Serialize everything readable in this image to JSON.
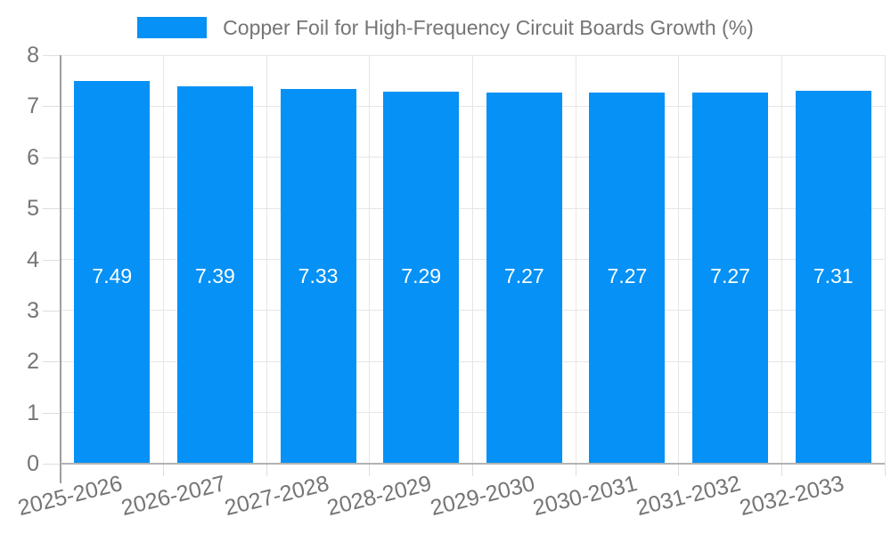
{
  "legend": {
    "label": "Copper Foil for High-Frequency Circuit Boards Growth (%)"
  },
  "chart_data": {
    "type": "bar",
    "title": "Copper Foil for High-Frequency Circuit Boards Growth (%)",
    "categories": [
      "2025-2026",
      "2026-2027",
      "2027-2028",
      "2028-2029",
      "2029-2030",
      "2030-2031",
      "2031-2032",
      "2032-2033"
    ],
    "values": [
      7.49,
      7.39,
      7.33,
      7.29,
      7.27,
      7.27,
      7.27,
      7.31
    ],
    "value_labels": [
      "7.49",
      "7.39",
      "7.33",
      "7.29",
      "7.27",
      "7.27",
      "7.27",
      "7.31"
    ],
    "xlabel": "",
    "ylabel": "",
    "ylim": [
      0,
      8
    ],
    "yticks": [
      0,
      1,
      2,
      3,
      4,
      5,
      6,
      7,
      8
    ],
    "grid": true,
    "legend_position": "top",
    "bar_color": "#0591f5",
    "colors": {
      "gridline": "#e6e6e6",
      "tick": "#dedede",
      "y_axis_line": "#9e9e9e",
      "x_axis_line": "#b3b3b3",
      "axis_label": "#757575",
      "value_label": "#ffffff"
    }
  }
}
